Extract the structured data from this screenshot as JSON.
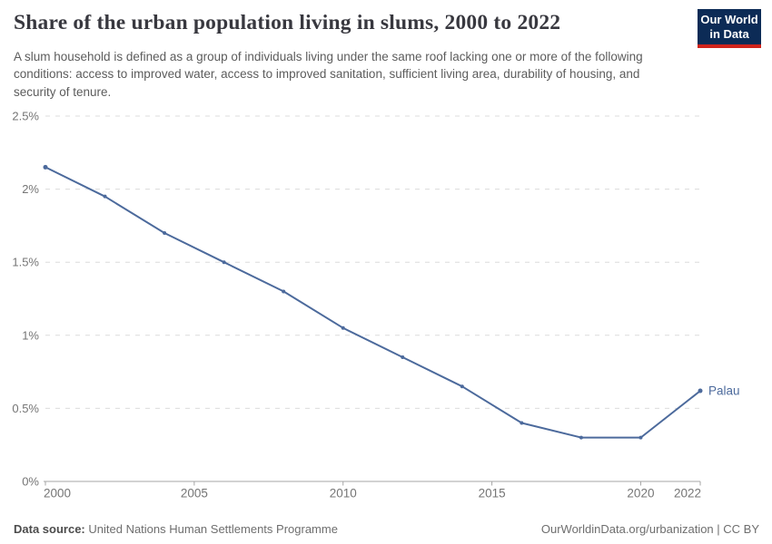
{
  "header": {
    "title": "Share of the urban population living in slums, 2000 to 2022",
    "subtitle": "A slum household is defined as a group of individuals living under the same roof lacking one or more of the following conditions: access to improved water, access to improved sanitation, sufficient living area, durability of housing, and security of tenure.",
    "logo": {
      "line1": "Our World",
      "line2": "in Data",
      "bg_color": "#0c2b56",
      "accent_color": "#d0231b"
    }
  },
  "chart_data": {
    "type": "line",
    "title": "Share of the urban population living in slums, 2000 to 2022",
    "x": [
      2000,
      2002,
      2004,
      2006,
      2008,
      2010,
      2012,
      2014,
      2016,
      2018,
      2020,
      2022
    ],
    "series": [
      {
        "name": "Palau",
        "color": "#4c6a9c",
        "values": [
          2.15,
          1.95,
          1.7,
          1.5,
          1.3,
          1.05,
          0.85,
          0.65,
          0.4,
          0.3,
          0.3,
          0.62
        ]
      }
    ],
    "unit": "%",
    "xlabel": "",
    "ylabel": "",
    "xlim": [
      2000,
      2022
    ],
    "ylim": [
      0,
      2.5
    ],
    "x_ticks": [
      2000,
      2005,
      2010,
      2015,
      2020,
      2022
    ],
    "y_ticks": [
      {
        "value": 0,
        "label": "0%"
      },
      {
        "value": 0.5,
        "label": "0.5%"
      },
      {
        "value": 1,
        "label": "1%"
      },
      {
        "value": 1.5,
        "label": "1.5%"
      },
      {
        "value": 2,
        "label": "2%"
      },
      {
        "value": 2.5,
        "label": "2.5%"
      }
    ],
    "grid": "horizontal-dashed",
    "legend": "end-of-line-label",
    "grid_color": "#dcdcdc",
    "axis_color": "#a6a6a6",
    "tick_label_color": "#757575"
  },
  "footer": {
    "source_label": "Data source:",
    "source_text": "United Nations Human Settlements Programme",
    "license_text": "OurWorldinData.org/urbanization | CC BY"
  }
}
